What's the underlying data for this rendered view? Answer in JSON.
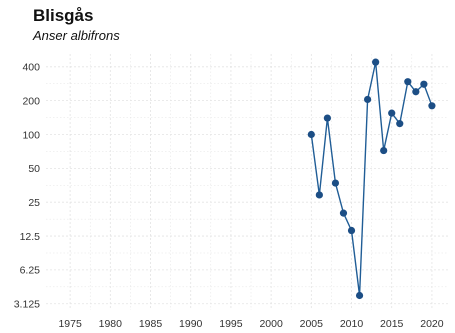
{
  "chart_data": {
    "type": "line",
    "title": "Blisgås",
    "subtitle": "Anser albifrons",
    "xlabel": "",
    "ylabel": "",
    "x": [
      2005,
      2006,
      2007,
      2008,
      2009,
      2010,
      2011,
      2012,
      2013,
      2014,
      2015,
      2016,
      2017,
      2018,
      2019,
      2020
    ],
    "series": [
      {
        "values": [
          100,
          29,
          140,
          37,
          20,
          14,
          3.7,
          205,
          440,
          72,
          155,
          125,
          295,
          240,
          280,
          180
        ],
        "color": "#205d96"
      }
    ],
    "xlim": [
      1972,
      2022
    ],
    "x_ticks": [
      1975,
      1980,
      1985,
      1990,
      1995,
      2000,
      2005,
      2010,
      2015,
      2020
    ],
    "x_tick_labels": [
      "1975",
      "1980",
      "1985",
      "1990",
      "1995",
      "2000",
      "2005",
      "2010",
      "2015",
      "2020"
    ],
    "yscale": "log",
    "ylim": [
      2.75,
      520
    ],
    "y_ticks": [
      3.125,
      6.25,
      12.5,
      25,
      50,
      100,
      200,
      400
    ],
    "y_tick_labels": [
      "3.125",
      "6.25",
      "12.5",
      "25",
      "50",
      "100",
      "200",
      "400"
    ],
    "grid": true,
    "grid_color": "#e3e3e3",
    "line_color": "#205d96",
    "marker_color": "#1c4e85",
    "axis_text_color": "#333333"
  }
}
